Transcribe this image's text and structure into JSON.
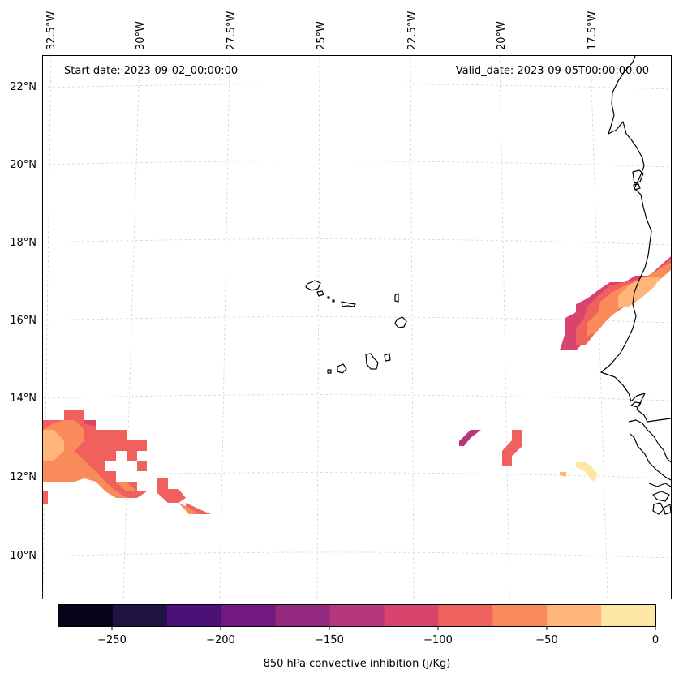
{
  "header": {
    "start_date": "Start date: 2023-09-02_00:00:00",
    "valid_date": "Valid_date: 2023-09-05T00:00:00.00"
  },
  "lon_labels": [
    "32.5°W",
    "30°W",
    "27.5°W",
    "25°W",
    "22.5°W",
    "20°W",
    "17.5°W"
  ],
  "lat_labels": [
    "22°N",
    "20°N",
    "18°N",
    "16°N",
    "14°N",
    "12°N",
    "10°N"
  ],
  "colorbar": {
    "label": "850 hPa convective inhibition (j/Kg)",
    "tick_labels": [
      "−250",
      "−200",
      "−150",
      "−100",
      "−50",
      "0"
    ],
    "colors": [
      "#050418",
      "#211244",
      "#4d1076",
      "#71197e",
      "#932a7f",
      "#b5367a",
      "#d8446e",
      "#f0605d",
      "#fa8a5a",
      "#fdb57a",
      "#fde7a4"
    ]
  }
}
